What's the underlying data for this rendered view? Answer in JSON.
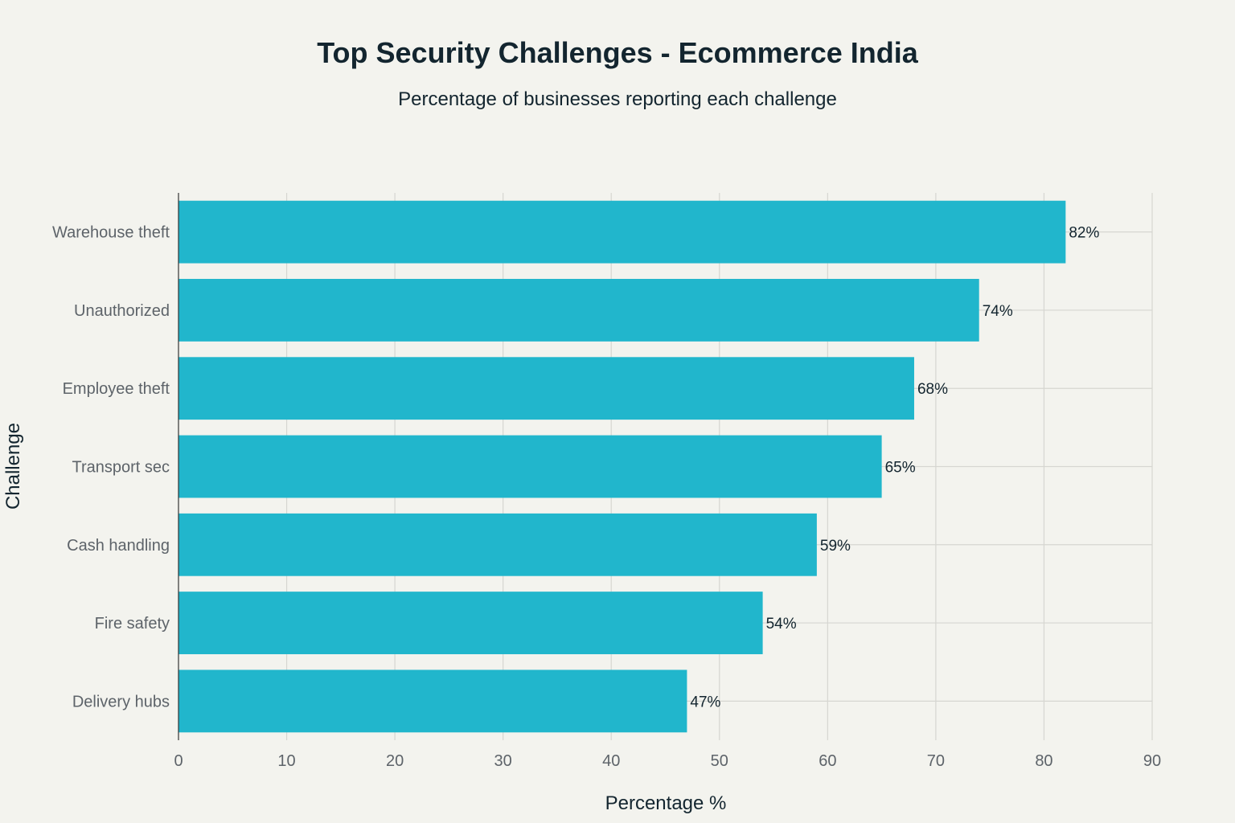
{
  "colors": {
    "background": "#f3f3ee",
    "bar": "#21b6cc",
    "text": "#13252f",
    "tick_text": "#5d6369",
    "grid": "#d6d6d1"
  },
  "chart_data": {
    "type": "bar",
    "orientation": "horizontal",
    "title": "Top Security Challenges - Ecommerce India",
    "subtitle": "Percentage of businesses reporting each challenge",
    "xlabel": "Percentage %",
    "ylabel": "Challenge",
    "categories": [
      "Warehouse theft",
      "Unauthorized",
      "Employee theft",
      "Transport sec",
      "Cash handling",
      "Fire safety",
      "Delivery hubs"
    ],
    "values": [
      82,
      74,
      68,
      65,
      59,
      54,
      47
    ],
    "data_labels": [
      "82%",
      "74%",
      "68%",
      "65%",
      "59%",
      "54%",
      "47%"
    ],
    "xlim": [
      0,
      90
    ],
    "xticks": [
      "0",
      "10",
      "20",
      "30",
      "40",
      "50",
      "60",
      "70",
      "80",
      "90"
    ],
    "grid": true,
    "legend": "none"
  }
}
